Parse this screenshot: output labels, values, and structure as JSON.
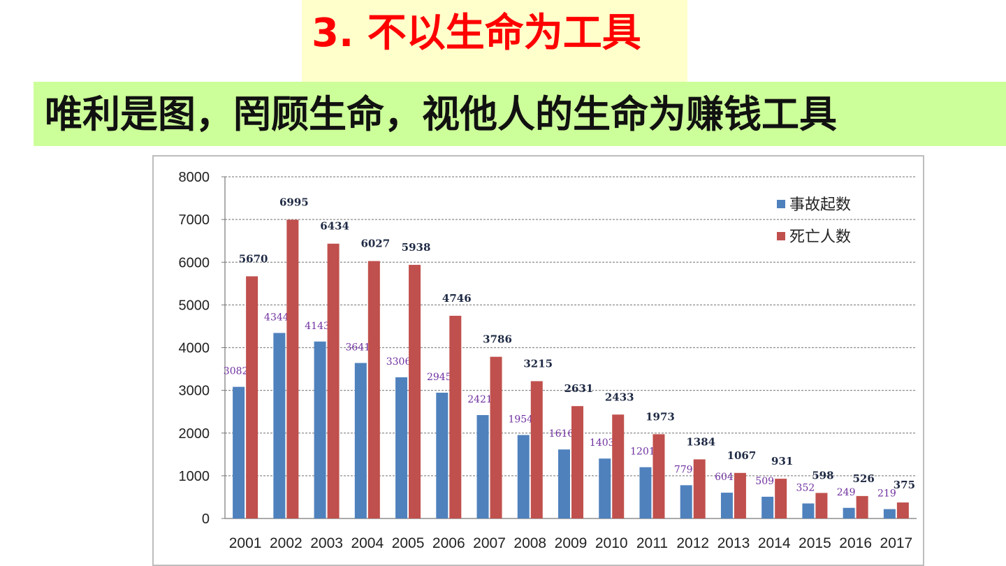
{
  "banner": {
    "text": "唯利是图，罔顾生命，视他人的生命为赚钱工具",
    "background": "#ccff99"
  },
  "title": {
    "text": "3. 不以生命为工具",
    "color": "#ff0000",
    "background": "#ffffcc"
  },
  "chart_data": {
    "type": "bar",
    "categories": [
      "2001",
      "2002",
      "2003",
      "2004",
      "2005",
      "2006",
      "2007",
      "2008",
      "2009",
      "2010",
      "2011",
      "2012",
      "2013",
      "2014",
      "2015",
      "2016",
      "2017"
    ],
    "series": [
      {
        "name": "事故起数",
        "color": "#4f81bd",
        "label_color": "#7030a0",
        "values": [
          3082,
          4344,
          4143,
          3641,
          3306,
          2945,
          2421,
          1954,
          1616,
          1403,
          1201,
          779,
          604,
          509,
          352,
          249,
          219
        ]
      },
      {
        "name": "死亡人数",
        "color": "#c0504d",
        "label_color": "#1f2a44",
        "values": [
          5670,
          6995,
          6434,
          6027,
          5938,
          4746,
          3786,
          3215,
          2631,
          2433,
          1973,
          1384,
          1067,
          931,
          598,
          526,
          375
        ]
      }
    ],
    "ylim": [
      0,
      8000
    ],
    "yticks": [
      0,
      1000,
      2000,
      3000,
      4000,
      5000,
      6000,
      7000,
      8000
    ],
    "grid": true,
    "legend_position": "top-right"
  }
}
